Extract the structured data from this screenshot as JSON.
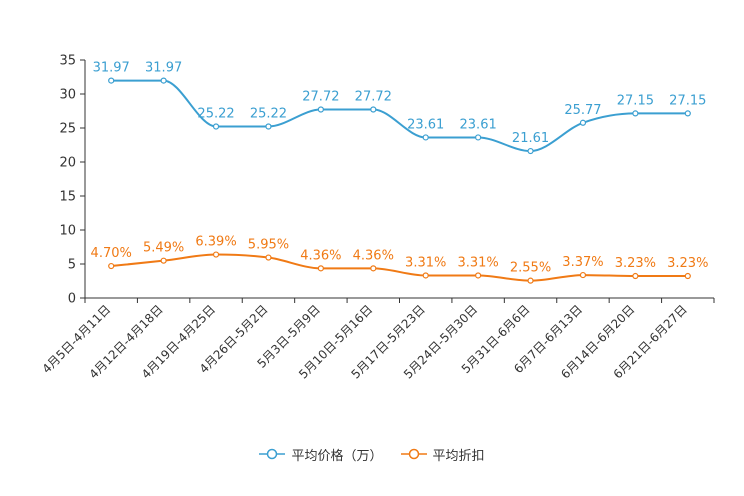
{
  "chart_data": {
    "type": "line",
    "title": "",
    "xlabel": "",
    "ylabel": "",
    "ylim": [
      0,
      35
    ],
    "yticks": [
      0,
      5,
      10,
      15,
      20,
      25,
      30,
      35
    ],
    "categories": [
      "4月5日-4月11日",
      "4月12日-4月18日",
      "4月19日-4月25日",
      "4月26日-5月2日",
      "5月3日-5月9日",
      "5月10日-5月16日",
      "5月17日-5月23日",
      "5月24日-5月30日",
      "5月31日-6月6日",
      "6月7日-6月13日",
      "6月14日-6月20日",
      "6月21日-6月27日"
    ],
    "series": [
      {
        "name": "平均价格（万）",
        "color": "#3b9fd1",
        "values": [
          31.97,
          31.97,
          25.22,
          25.22,
          27.72,
          27.72,
          23.61,
          23.61,
          21.61,
          25.77,
          27.15,
          27.15
        ],
        "labels": [
          "31.97",
          "31.97",
          "25.22",
          "25.22",
          "27.72",
          "27.72",
          "23.61",
          "23.61",
          "21.61",
          "25.77",
          "27.15",
          "27.15"
        ]
      },
      {
        "name": "平均折扣",
        "color": "#f07a15",
        "values": [
          4.7,
          5.49,
          6.39,
          5.95,
          4.36,
          4.36,
          3.31,
          3.31,
          2.55,
          3.37,
          3.23,
          3.23
        ],
        "labels": [
          "4.70%",
          "5.49%",
          "6.39%",
          "5.95%",
          "4.36%",
          "4.36%",
          "3.31%",
          "3.31%",
          "2.55%",
          "3.37%",
          "3.23%",
          "3.23%"
        ]
      }
    ],
    "legend_position": "bottom-center",
    "grid": false
  }
}
